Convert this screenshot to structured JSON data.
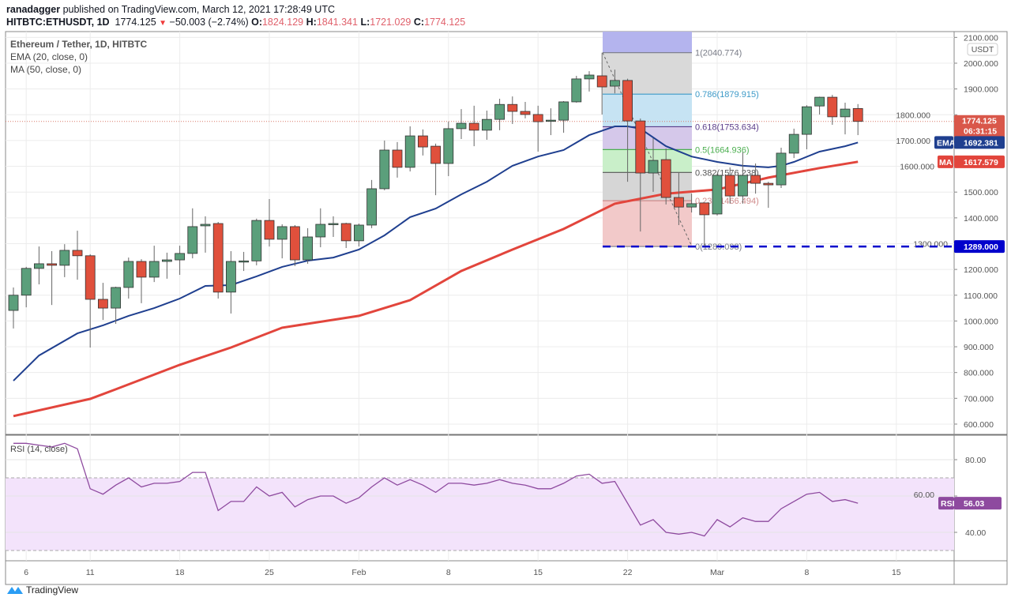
{
  "header": {
    "publisher": "ranadagger",
    "published_text": "published on TradingView.com, March 12, 2021 17:28:49 UTC",
    "symbol": "HITBTC:ETHUSDT, 1D",
    "last": "1774.125",
    "change": "−50.003 (−2.74%)",
    "o_label": "O:",
    "o": "1824.129",
    "h_label": "H:",
    "h": "1841.341",
    "l_label": "L:",
    "l": "1721.029",
    "c_label": "C:",
    "c": "1774.125"
  },
  "legend": {
    "title": "Ethereum / Tether, 1D, HITBTC",
    "ema": "EMA (20, close, 0)",
    "ma": "MA (50, close, 0)",
    "rsi": "RSI (14, close)"
  },
  "price_axis": {
    "currency": "USDT",
    "ticks": [
      "2100.000",
      "2000.000",
      "1900.000",
      "1800.000",
      "1700.000",
      "1600.000",
      "1500.000",
      "1400.000",
      "1300.000",
      "1200.000",
      "1100.000",
      "1000.000",
      "900.000",
      "800.000",
      "700.000",
      "600.000"
    ],
    "last_tag": "1774.125",
    "countdown": "06:31:15",
    "ema_tag_label": "EMA",
    "ema_tag": "1692.381",
    "ma_tag_label": "MA",
    "ma_tag": "1617.579",
    "support_tag": "1289.000"
  },
  "rsi_axis": {
    "ticks": [
      "80.00",
      "60.00",
      "40.00"
    ],
    "tag_label": "RSI",
    "tag": "56.03"
  },
  "time_axis": {
    "ticks": [
      "6",
      "11",
      "18",
      "25",
      "Feb",
      "8",
      "15",
      "22",
      "Mar",
      "8",
      "15"
    ]
  },
  "fib_levels": [
    {
      "label": "1(2040.774)",
      "value": 2040.774,
      "color": "#787b86"
    },
    {
      "label": "0.786(1879.915)",
      "value": 1879.915,
      "color": "#3d9ac8"
    },
    {
      "label": "0.618(1753.634)",
      "value": 1753.634,
      "color": "#5b3d8a"
    },
    {
      "label": "0.5(1664.936)",
      "value": 1664.936,
      "color": "#4caf50"
    },
    {
      "label": "0.382(1576.238)",
      "value": 1576.238,
      "color": "#555555"
    },
    {
      "label": "0.236(1466.494)",
      "value": 1466.494,
      "color": "#d08b8b"
    },
    {
      "label": "0(1289.098)",
      "value": 1289.098,
      "color": "#787b86"
    }
  ],
  "brand": {
    "name": "TradingView"
  },
  "colors": {
    "up": "#5b9f7b",
    "down": "#e0503c",
    "ema": "#1f3f8f",
    "ma": "#e2453c",
    "rsi": "#8e4a9f",
    "support": "#0000cc"
  },
  "chart_data": {
    "type": "candlestick",
    "title": "Ethereum / Tether, 1D, HITBTC",
    "x_start": "2021-01-05",
    "ylim": [
      560,
      2110
    ],
    "ohlc": [
      [
        1041,
        1130,
        971,
        1100
      ],
      [
        1100,
        1210,
        1053,
        1204
      ],
      [
        1204,
        1289,
        1142,
        1222
      ],
      [
        1222,
        1271,
        1062,
        1216
      ],
      [
        1216,
        1298,
        1170,
        1274
      ],
      [
        1274,
        1350,
        1160,
        1253
      ],
      [
        1253,
        1259,
        897,
        1084
      ],
      [
        1084,
        1148,
        1004,
        1050
      ],
      [
        1050,
        1133,
        989,
        1130
      ],
      [
        1130,
        1246,
        1087,
        1231
      ],
      [
        1231,
        1240,
        1069,
        1170
      ],
      [
        1170,
        1292,
        1151,
        1231
      ],
      [
        1231,
        1265,
        1164,
        1237
      ],
      [
        1237,
        1292,
        1179,
        1262
      ],
      [
        1262,
        1437,
        1243,
        1366
      ],
      [
        1369,
        1406,
        1265,
        1375
      ],
      [
        1378,
        1384,
        1087,
        1112
      ],
      [
        1112,
        1271,
        1029,
        1231
      ],
      [
        1231,
        1268,
        1194,
        1233
      ],
      [
        1233,
        1397,
        1216,
        1390
      ],
      [
        1390,
        1473,
        1289,
        1317
      ],
      [
        1317,
        1375,
        1243,
        1366
      ],
      [
        1366,
        1372,
        1213,
        1237
      ],
      [
        1237,
        1360,
        1222,
        1326
      ],
      [
        1326,
        1437,
        1286,
        1375
      ],
      [
        1375,
        1406,
        1326,
        1378
      ],
      [
        1378,
        1381,
        1283,
        1311
      ],
      [
        1311,
        1378,
        1289,
        1372
      ],
      [
        1372,
        1547,
        1360,
        1513
      ],
      [
        1513,
        1700,
        1507,
        1663
      ],
      [
        1663,
        1694,
        1556,
        1596
      ],
      [
        1596,
        1755,
        1580,
        1718
      ],
      [
        1718,
        1743,
        1642,
        1675
      ],
      [
        1678,
        1688,
        1488,
        1611
      ],
      [
        1611,
        1773,
        1562,
        1746
      ],
      [
        1746,
        1822,
        1706,
        1767
      ],
      [
        1767,
        1835,
        1678,
        1740
      ],
      [
        1740,
        1816,
        1703,
        1782
      ],
      [
        1782,
        1862,
        1740,
        1840
      ],
      [
        1840,
        1871,
        1764,
        1813
      ],
      [
        1813,
        1850,
        1786,
        1801
      ],
      [
        1801,
        1835,
        1657,
        1773
      ],
      [
        1779,
        1825,
        1721,
        1779
      ],
      [
        1779,
        1853,
        1730,
        1850
      ],
      [
        1850,
        1951,
        1847,
        1939
      ],
      [
        1939,
        1969,
        1890,
        1954
      ],
      [
        1951,
        2040.774,
        1801,
        1908
      ],
      [
        1911,
        1975,
        1883,
        1933
      ],
      [
        1933,
        1940,
        1540,
        1776
      ],
      [
        1776,
        1785,
        1347,
        1574
      ],
      [
        1574,
        1709,
        1501,
        1623
      ],
      [
        1626,
        1669,
        1452,
        1479
      ],
      [
        1479,
        1577,
        1372,
        1442
      ],
      [
        1442,
        1494,
        1421,
        1455
      ],
      [
        1458,
        1460,
        1289.098,
        1412
      ],
      [
        1415,
        1571,
        1409,
        1565
      ],
      [
        1565,
        1596,
        1455,
        1485
      ],
      [
        1485,
        1654,
        1455,
        1565
      ],
      [
        1565,
        1611,
        1494,
        1534
      ],
      [
        1534,
        1540,
        1439,
        1528
      ],
      [
        1528,
        1672,
        1516,
        1651
      ],
      [
        1651,
        1746,
        1632,
        1724
      ],
      [
        1724,
        1837,
        1666,
        1831
      ],
      [
        1834,
        1870,
        1801,
        1868
      ],
      [
        1868,
        1877,
        1761,
        1792
      ],
      [
        1792,
        1847,
        1724,
        1822
      ],
      [
        1824.129,
        1841.341,
        1721.029,
        1774.125
      ]
    ],
    "ema20": [
      [
        0,
        768
      ],
      [
        2,
        866
      ],
      [
        5,
        952
      ],
      [
        7,
        983
      ],
      [
        9,
        1020
      ],
      [
        11,
        1050
      ],
      [
        13,
        1087
      ],
      [
        15,
        1136
      ],
      [
        17,
        1139
      ],
      [
        19,
        1173
      ],
      [
        21,
        1210
      ],
      [
        23,
        1234
      ],
      [
        25,
        1246
      ],
      [
        27,
        1277
      ],
      [
        29,
        1332
      ],
      [
        31,
        1403
      ],
      [
        33,
        1436
      ],
      [
        35,
        1491
      ],
      [
        37,
        1540
      ],
      [
        39,
        1602
      ],
      [
        41,
        1638
      ],
      [
        43,
        1663
      ],
      [
        45,
        1721
      ],
      [
        47,
        1755
      ],
      [
        48,
        1755
      ],
      [
        49,
        1746
      ],
      [
        51,
        1678
      ],
      [
        53,
        1638
      ],
      [
        55,
        1617
      ],
      [
        57,
        1602
      ],
      [
        59,
        1596
      ],
      [
        60,
        1602
      ],
      [
        61,
        1617
      ],
      [
        63,
        1657
      ],
      [
        65,
        1678
      ],
      [
        66,
        1692.381
      ]
    ],
    "ma50": [
      [
        0,
        631
      ],
      [
        6,
        698
      ],
      [
        8,
        735
      ],
      [
        13,
        830
      ],
      [
        17,
        897
      ],
      [
        21,
        974
      ],
      [
        27,
        1020
      ],
      [
        31,
        1081
      ],
      [
        35,
        1194
      ],
      [
        39,
        1277
      ],
      [
        43,
        1357
      ],
      [
        47,
        1455
      ],
      [
        51,
        1494
      ],
      [
        55,
        1510
      ],
      [
        59,
        1556
      ],
      [
        63,
        1593
      ],
      [
        66,
        1617.579
      ]
    ],
    "rsi": [
      89,
      89,
      88,
      87,
      89,
      86,
      64,
      61,
      66,
      70,
      65,
      67,
      67,
      68,
      73,
      73,
      52,
      57,
      57,
      65,
      60,
      62,
      54,
      58,
      60,
      60,
      56,
      59,
      65,
      70,
      66,
      69,
      66,
      62,
      67,
      67,
      66,
      67,
      69,
      67,
      66,
      64,
      64,
      67,
      71,
      72,
      67,
      68,
      56,
      44,
      47,
      40,
      39,
      40,
      38,
      47,
      43,
      48,
      46,
      46,
      53,
      57,
      61,
      62,
      57,
      58,
      56.03
    ],
    "rsi_bands": [
      30,
      70
    ],
    "support": 1289.0
  }
}
